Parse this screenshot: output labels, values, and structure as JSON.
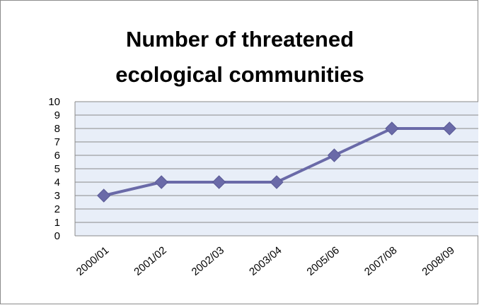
{
  "chart_data": {
    "type": "line",
    "title_lines": [
      "Number of threatened",
      "ecological communities"
    ],
    "categories": [
      "2000/01",
      "2001/02",
      "2002/03",
      "2003/04",
      "2005/06",
      "2007/08",
      "2008/09"
    ],
    "series": [
      {
        "values": [
          3,
          4,
          4,
          4,
          6,
          8,
          8
        ],
        "color": "#6a6aa8"
      }
    ],
    "ylim": [
      0,
      10
    ],
    "yticks": [
      0,
      1,
      2,
      3,
      4,
      5,
      6,
      7,
      8,
      9,
      10
    ],
    "grid": true,
    "plot_background": "#e8eef8",
    "marker": "diamond",
    "legend": "none"
  }
}
